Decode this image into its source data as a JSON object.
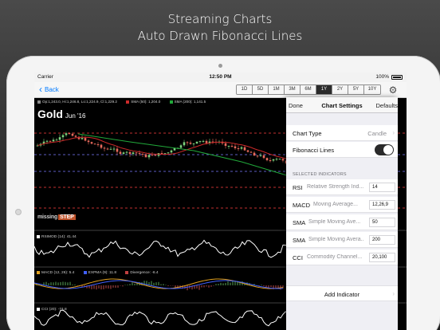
{
  "headline": {
    "line1": "Streaming Charts",
    "line2": "Auto Drawn Fibonacci Lines"
  },
  "status_bar": {
    "carrier": "Carrier",
    "time": "12:50 PM",
    "battery": "100%"
  },
  "nav": {
    "back_label": "Back",
    "ranges": [
      "1D",
      "5D",
      "1M",
      "3M",
      "6M",
      "1Y",
      "2Y",
      "5Y",
      "10Y"
    ],
    "active_range": "1Y"
  },
  "chart": {
    "ohlc": "Op:1,243.0, Hi:1,246.8, Lo:1,224.9, Cl:1,229.2",
    "sma50": "SMA (50): 1,204.0",
    "sma200": "SMA (200): 1,141.5",
    "symbol": "Gold",
    "contract": "Jun '16",
    "watermark_a": "missing",
    "watermark_b": "STEP",
    "rsi_label": "RSIMOD (14): 41.44",
    "macd_label": "MACD (12, 26): 5.4",
    "expma_label": "EXPMA (9): 11.8",
    "divergence_label": "Divergence: -6.4",
    "cci_label": "CCI (20): -74.8"
  },
  "colors": {
    "sma50": "#cc2a2a",
    "sma200": "#21a83a",
    "fib_blue": "#7a7aff",
    "fib_red": "#ff4040",
    "candle_up": "#7dd27d",
    "candle_down": "#e86a5c",
    "macd": "#e0a020",
    "expma": "#4060ff"
  },
  "settings": {
    "done": "Done",
    "title": "Chart Settings",
    "defaults": "Defaults",
    "chart_type_label": "Chart Type",
    "chart_type_value": "Candle",
    "fib_label": "Fibonacci Lines",
    "fib_on": true,
    "section": "SELECTED INDICATORS",
    "indicators": [
      {
        "abbr": "RSI",
        "desc": "Relative Strength Ind...",
        "param": "14"
      },
      {
        "abbr": "MACD",
        "desc": "Moving Average...",
        "param": "12,26,9"
      },
      {
        "abbr": "SMA",
        "desc": "Simple Moving Ave...",
        "param": "50"
      },
      {
        "abbr": "SMA",
        "desc": "Simple Moving Avera...",
        "param": "200"
      },
      {
        "abbr": "CCI",
        "desc": "Commodity Channel...",
        "param": "20,100"
      }
    ],
    "add_indicator": "Add Indicator"
  },
  "icons": {
    "back": "chevron-left-icon",
    "settings": "gear-icon",
    "row_chevron": "chevron-right-icon"
  }
}
